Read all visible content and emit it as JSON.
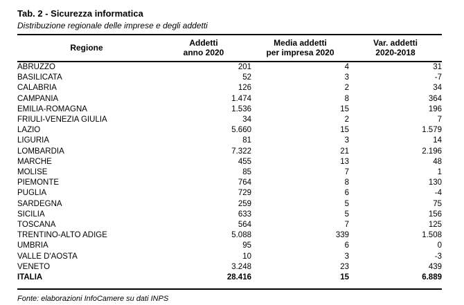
{
  "page": {
    "title": "Tab. 2 - Sicurezza informatica",
    "subtitle": "Distribuzione regionale delle imprese e degli addetti",
    "source_note": "Fonte: elaborazioni InfoCamere su dati INPS"
  },
  "colors": {
    "text": "#000000",
    "rule": "#000000",
    "background": "#ffffff"
  },
  "chart_data": {
    "type": "table",
    "title": "Tab. 2 - Sicurezza informatica",
    "subtitle": "Distribuzione regionale delle imprese e degli addetti",
    "columns": [
      {
        "line1": "Regione",
        "line2": ""
      },
      {
        "line1": "Addetti",
        "line2": "anno 2020"
      },
      {
        "line1": "Media addetti",
        "line2": "per impresa 2020"
      },
      {
        "line1": "Var. addetti",
        "line2": "2020-2018"
      }
    ],
    "rows": [
      [
        "ABRUZZO",
        "201",
        "4",
        "31"
      ],
      [
        "BASILICATA",
        "52",
        "3",
        "-7"
      ],
      [
        "CALABRIA",
        "126",
        "2",
        "34"
      ],
      [
        "CAMPANIA",
        "1.474",
        "8",
        "364"
      ],
      [
        "EMILIA-ROMAGNA",
        "1.536",
        "15",
        "196"
      ],
      [
        "FRIULI-VENEZIA GIULIA",
        "34",
        "2",
        "7"
      ],
      [
        "LAZIO",
        "5.660",
        "15",
        "1.579"
      ],
      [
        "LIGURIA",
        "81",
        "3",
        "14"
      ],
      [
        "LOMBARDIA",
        "7.322",
        "21",
        "2.196"
      ],
      [
        "MARCHE",
        "455",
        "13",
        "48"
      ],
      [
        "MOLISE",
        "85",
        "7",
        "1"
      ],
      [
        "PIEMONTE",
        "764",
        "8",
        "130"
      ],
      [
        "PUGLIA",
        "729",
        "6",
        "-4"
      ],
      [
        "SARDEGNA",
        "259",
        "5",
        "75"
      ],
      [
        "SICILIA",
        "633",
        "5",
        "156"
      ],
      [
        "TOSCANA",
        "564",
        "7",
        "125"
      ],
      [
        "TRENTINO-ALTO ADIGE",
        "5.088",
        "339",
        "1.508"
      ],
      [
        "UMBRIA",
        "95",
        "6",
        "0"
      ],
      [
        "VALLE D'AOSTA",
        "10",
        "3",
        "-3"
      ],
      [
        "VENETO",
        "3.248",
        "23",
        "439"
      ]
    ],
    "total_row": [
      "ITALIA",
      "28.416",
      "15",
      "6.889"
    ],
    "source_note": "Fonte: elaborazioni InfoCamere su dati INPS"
  }
}
